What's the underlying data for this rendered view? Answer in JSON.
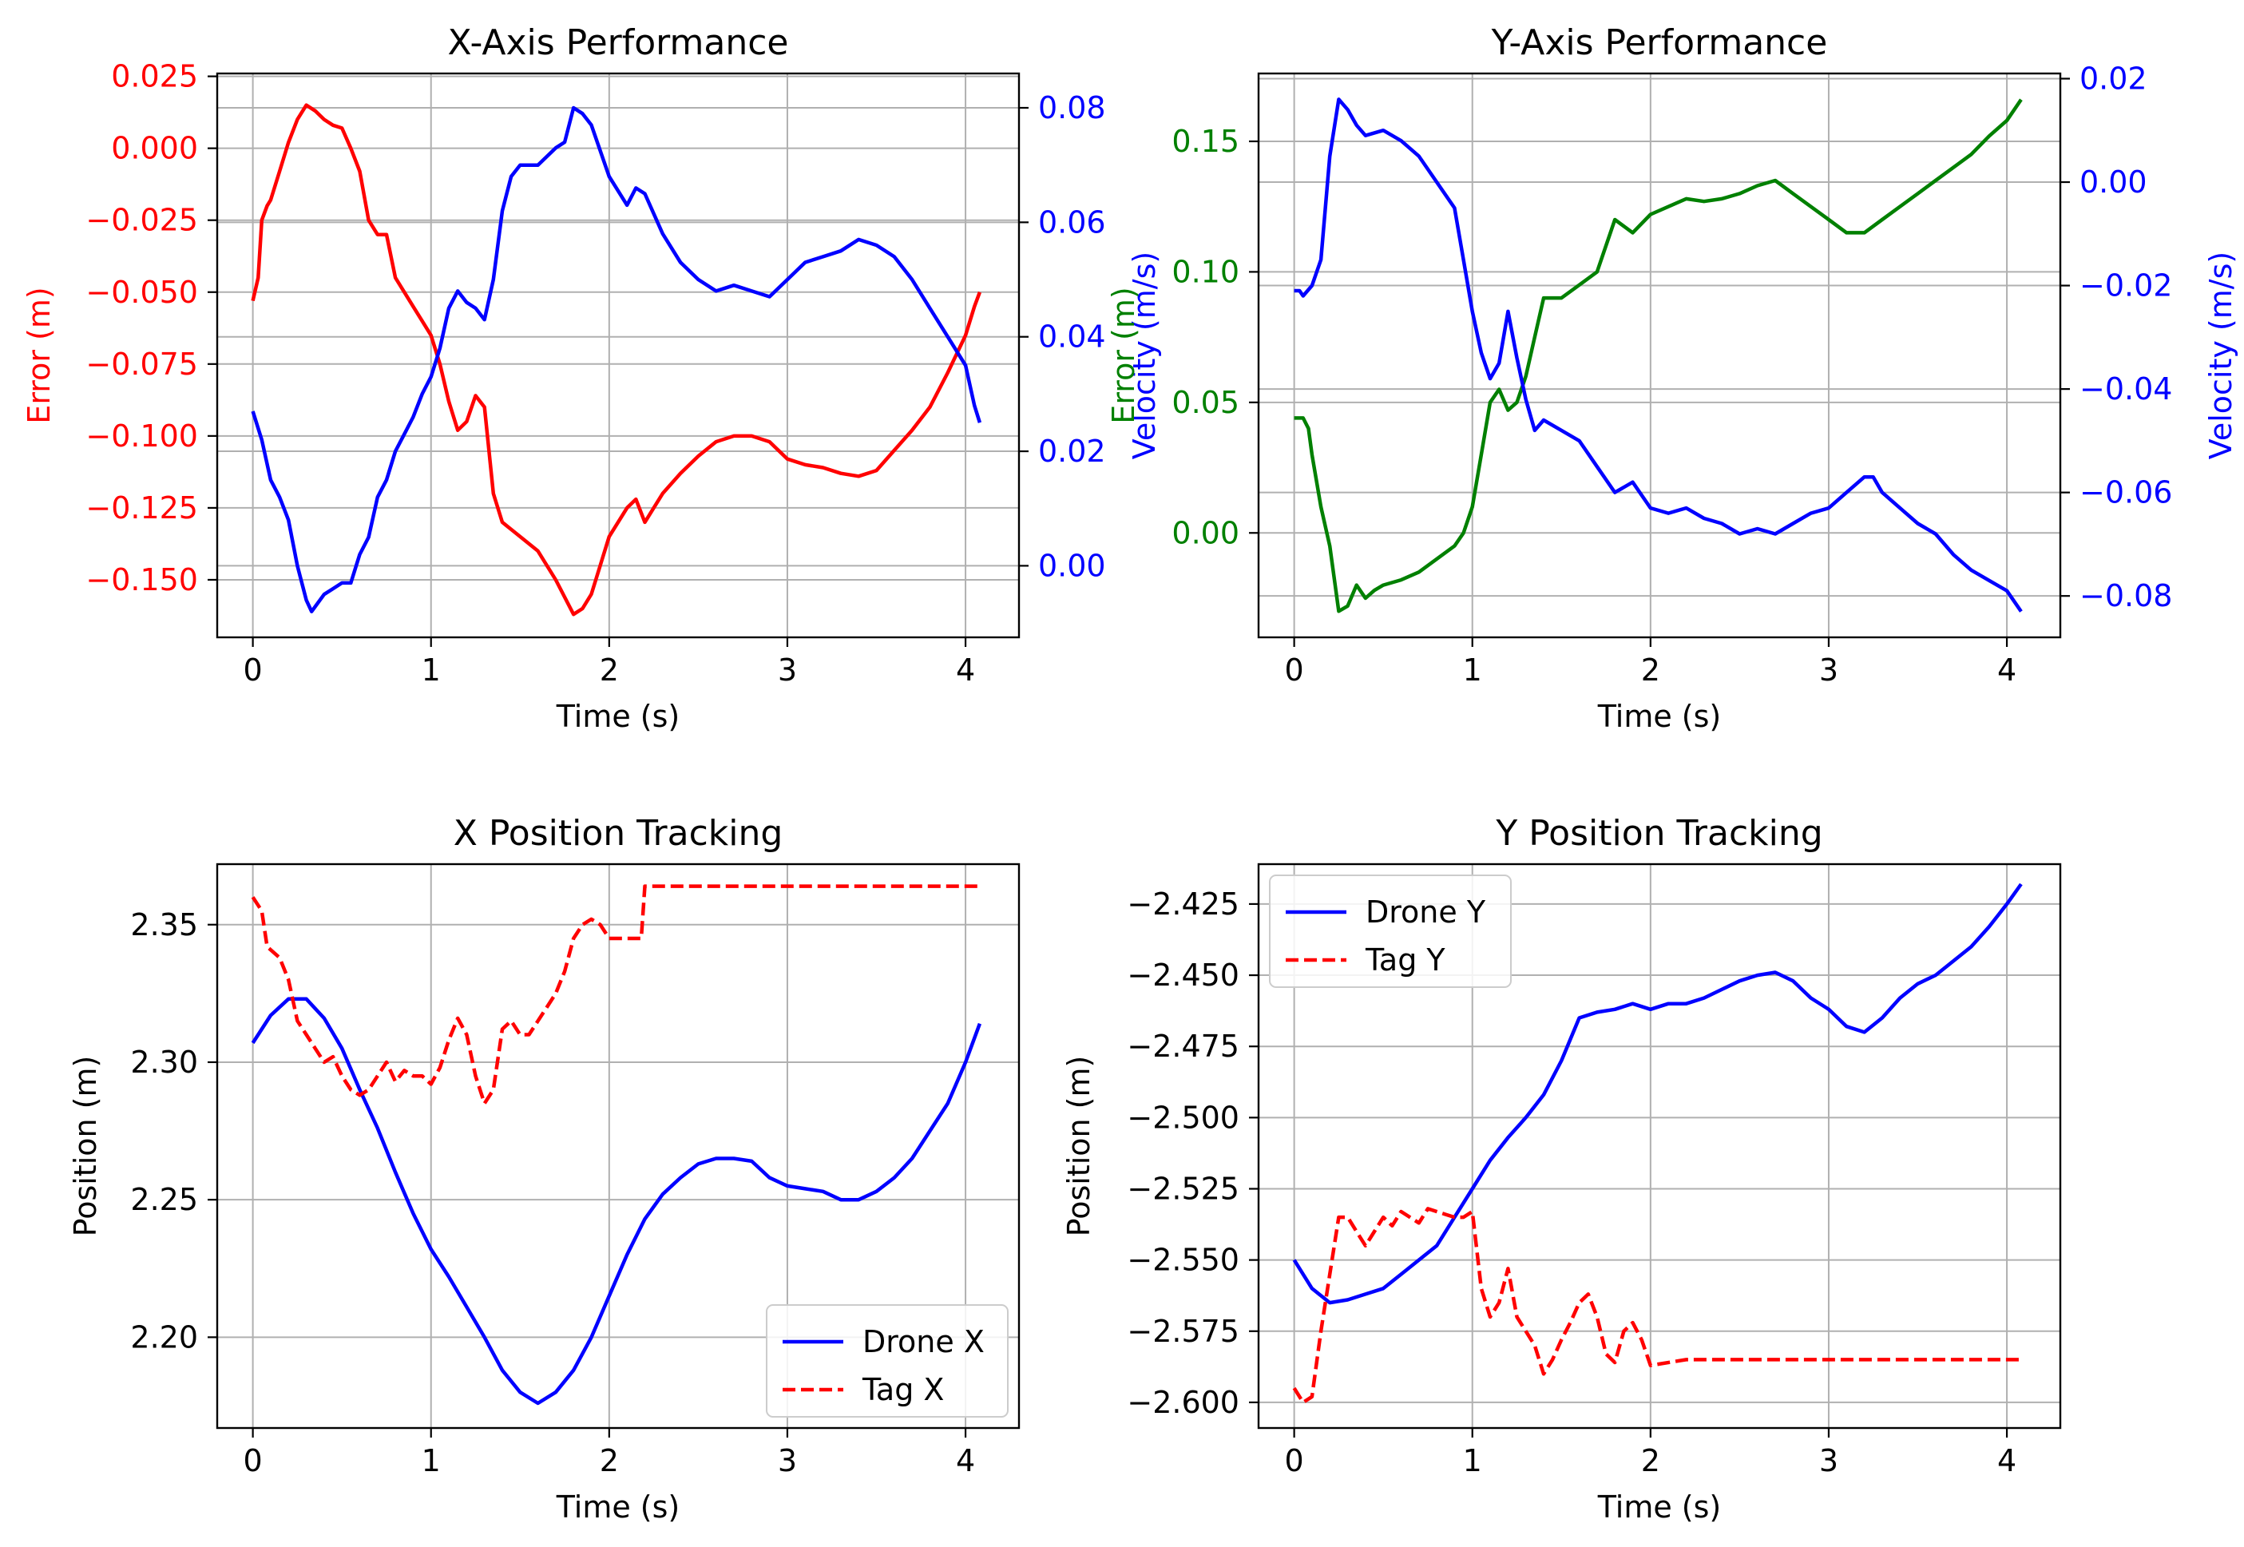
{
  "chart_data": [
    {
      "type": "line",
      "title": "X-Axis Performance",
      "xlabel": "Time (s)",
      "ylabel": "Error (m)",
      "ylabel_right": "Velocity (m/s)",
      "xlim": [
        -0.2,
        4.3
      ],
      "ylim": [
        -0.17,
        0.026
      ],
      "ylim_right": [
        -0.0125,
        0.086
      ],
      "xticks": [
        0,
        1,
        2,
        3,
        4
      ],
      "yticks": [
        -0.15,
        -0.125,
        -0.1,
        -0.075,
        -0.05,
        -0.025,
        0.0,
        0.025
      ],
      "yticks_right": [
        0.0,
        0.02,
        0.04,
        0.06,
        0.08
      ],
      "left_color": "#ff0000",
      "right_color": "#0000ff",
      "grid": true,
      "series": [
        {
          "axis": "left",
          "color": "#ff0000",
          "dash": false,
          "x": [
            0,
            0.03,
            0.05,
            0.08,
            0.1,
            0.15,
            0.2,
            0.25,
            0.3,
            0.35,
            0.4,
            0.45,
            0.5,
            0.55,
            0.6,
            0.65,
            0.7,
            0.75,
            0.8,
            0.85,
            0.9,
            0.95,
            1.0,
            1.05,
            1.1,
            1.15,
            1.2,
            1.25,
            1.3,
            1.35,
            1.4,
            1.5,
            1.6,
            1.7,
            1.8,
            1.85,
            1.9,
            2.0,
            2.1,
            2.15,
            2.2,
            2.3,
            2.4,
            2.5,
            2.6,
            2.7,
            2.8,
            2.9,
            3.0,
            3.1,
            3.2,
            3.3,
            3.4,
            3.5,
            3.6,
            3.7,
            3.8,
            3.9,
            4.0,
            4.05,
            4.08
          ],
          "y": [
            -0.053,
            -0.045,
            -0.025,
            -0.02,
            -0.018,
            -0.008,
            0.002,
            0.01,
            0.015,
            0.013,
            0.01,
            0.008,
            0.007,
            0.0,
            -0.008,
            -0.025,
            -0.03,
            -0.03,
            -0.045,
            -0.05,
            -0.055,
            -0.06,
            -0.065,
            -0.075,
            -0.088,
            -0.098,
            -0.095,
            -0.086,
            -0.09,
            -0.12,
            -0.13,
            -0.135,
            -0.14,
            -0.15,
            -0.162,
            -0.16,
            -0.155,
            -0.135,
            -0.125,
            -0.122,
            -0.13,
            -0.12,
            -0.113,
            -0.107,
            -0.102,
            -0.1,
            -0.1,
            -0.102,
            -0.108,
            -0.11,
            -0.111,
            -0.113,
            -0.114,
            -0.112,
            -0.105,
            -0.098,
            -0.09,
            -0.078,
            -0.065,
            -0.055,
            -0.05
          ]
        },
        {
          "axis": "right",
          "color": "#0000ff",
          "dash": false,
          "x": [
            0,
            0.05,
            0.1,
            0.15,
            0.2,
            0.25,
            0.3,
            0.33,
            0.4,
            0.45,
            0.5,
            0.55,
            0.6,
            0.65,
            0.7,
            0.75,
            0.8,
            0.85,
            0.9,
            0.95,
            1.0,
            1.05,
            1.1,
            1.15,
            1.2,
            1.25,
            1.3,
            1.35,
            1.4,
            1.45,
            1.5,
            1.6,
            1.7,
            1.75,
            1.8,
            1.85,
            1.9,
            2.0,
            2.1,
            2.15,
            2.2,
            2.3,
            2.4,
            2.5,
            2.6,
            2.7,
            2.8,
            2.9,
            3.0,
            3.1,
            3.2,
            3.3,
            3.4,
            3.5,
            3.6,
            3.7,
            3.8,
            3.9,
            4.0,
            4.05,
            4.08
          ],
          "y": [
            0.027,
            0.022,
            0.015,
            0.012,
            0.008,
            0.0,
            -0.006,
            -0.008,
            -0.005,
            -0.004,
            -0.003,
            -0.003,
            0.002,
            0.005,
            0.012,
            0.015,
            0.02,
            0.023,
            0.026,
            0.03,
            0.033,
            0.038,
            0.045,
            0.048,
            0.046,
            0.045,
            0.043,
            0.05,
            0.062,
            0.068,
            0.07,
            0.07,
            0.073,
            0.074,
            0.08,
            0.079,
            0.077,
            0.068,
            0.063,
            0.066,
            0.065,
            0.058,
            0.053,
            0.05,
            0.048,
            0.049,
            0.048,
            0.047,
            0.05,
            0.053,
            0.054,
            0.055,
            0.057,
            0.056,
            0.054,
            0.05,
            0.045,
            0.04,
            0.035,
            0.028,
            0.025
          ]
        }
      ]
    },
    {
      "type": "line",
      "title": "Y-Axis Performance",
      "xlabel": "Time (s)",
      "ylabel": "Error (m)",
      "ylabel_right": "Velocity (m/s)",
      "xlim": [
        -0.2,
        4.3
      ],
      "ylim": [
        -0.04,
        0.176
      ],
      "ylim_right": [
        -0.088,
        0.021
      ],
      "xticks": [
        0,
        1,
        2,
        3,
        4
      ],
      "yticks": [
        0.0,
        0.05,
        0.1,
        0.15
      ],
      "yticks_right": [
        -0.08,
        -0.06,
        -0.04,
        -0.02,
        0.0,
        0.02
      ],
      "left_color": "#008000",
      "right_color": "#0000ff",
      "grid": true,
      "series": [
        {
          "axis": "left",
          "color": "#008000",
          "dash": false,
          "x": [
            0,
            0.05,
            0.08,
            0.1,
            0.15,
            0.2,
            0.25,
            0.3,
            0.35,
            0.4,
            0.45,
            0.5,
            0.6,
            0.7,
            0.8,
            0.9,
            0.95,
            1.0,
            1.05,
            1.1,
            1.15,
            1.2,
            1.25,
            1.3,
            1.35,
            1.4,
            1.5,
            1.6,
            1.7,
            1.8,
            1.9,
            2.0,
            2.1,
            2.2,
            2.3,
            2.4,
            2.5,
            2.6,
            2.7,
            2.8,
            2.9,
            3.0,
            3.1,
            3.2,
            3.3,
            3.4,
            3.5,
            3.6,
            3.7,
            3.8,
            3.9,
            4.0,
            4.08
          ],
          "y": [
            0.044,
            0.044,
            0.04,
            0.03,
            0.01,
            -0.005,
            -0.03,
            -0.028,
            -0.02,
            -0.025,
            -0.022,
            -0.02,
            -0.018,
            -0.015,
            -0.01,
            -0.005,
            0.0,
            0.01,
            0.03,
            0.05,
            0.055,
            0.047,
            0.05,
            0.06,
            0.075,
            0.09,
            0.09,
            0.095,
            0.1,
            0.12,
            0.115,
            0.122,
            0.125,
            0.128,
            0.127,
            0.128,
            0.13,
            0.133,
            0.135,
            0.13,
            0.125,
            0.12,
            0.115,
            0.115,
            0.12,
            0.125,
            0.13,
            0.135,
            0.14,
            0.145,
            0.152,
            0.158,
            0.166
          ]
        },
        {
          "axis": "right",
          "color": "#0000ff",
          "dash": false,
          "x": [
            0,
            0.03,
            0.05,
            0.1,
            0.15,
            0.2,
            0.25,
            0.3,
            0.35,
            0.4,
            0.5,
            0.6,
            0.7,
            0.8,
            0.9,
            0.95,
            1.0,
            1.05,
            1.1,
            1.15,
            1.2,
            1.25,
            1.3,
            1.35,
            1.4,
            1.5,
            1.6,
            1.7,
            1.8,
            1.9,
            2.0,
            2.1,
            2.2,
            2.3,
            2.4,
            2.5,
            2.6,
            2.7,
            2.8,
            2.9,
            3.0,
            3.1,
            3.2,
            3.25,
            3.3,
            3.4,
            3.5,
            3.6,
            3.7,
            3.8,
            3.9,
            4.0,
            4.08
          ],
          "y": [
            -0.021,
            -0.021,
            -0.022,
            -0.02,
            -0.015,
            0.005,
            0.016,
            0.014,
            0.011,
            0.009,
            0.01,
            0.008,
            0.005,
            0.0,
            -0.005,
            -0.015,
            -0.025,
            -0.033,
            -0.038,
            -0.035,
            -0.025,
            -0.034,
            -0.042,
            -0.048,
            -0.046,
            -0.048,
            -0.05,
            -0.055,
            -0.06,
            -0.058,
            -0.063,
            -0.064,
            -0.063,
            -0.065,
            -0.066,
            -0.068,
            -0.067,
            -0.068,
            -0.066,
            -0.064,
            -0.063,
            -0.06,
            -0.057,
            -0.057,
            -0.06,
            -0.063,
            -0.066,
            -0.068,
            -0.072,
            -0.075,
            -0.077,
            -0.079,
            -0.083
          ]
        }
      ]
    },
    {
      "type": "line",
      "title": "X Position Tracking",
      "xlabel": "Time (s)",
      "ylabel": "Position (m)",
      "xlim": [
        -0.2,
        4.3
      ],
      "ylim": [
        2.167,
        2.372
      ],
      "xticks": [
        0,
        1,
        2,
        3,
        4
      ],
      "yticks": [
        2.2,
        2.25,
        2.3,
        2.35
      ],
      "grid": true,
      "legend": "bottom-right",
      "series": [
        {
          "name": "Drone X",
          "color": "#0000ff",
          "dash": false,
          "x": [
            0,
            0.1,
            0.2,
            0.3,
            0.4,
            0.5,
            0.6,
            0.7,
            0.8,
            0.9,
            1.0,
            1.1,
            1.2,
            1.3,
            1.4,
            1.5,
            1.6,
            1.7,
            1.8,
            1.9,
            2.0,
            2.1,
            2.2,
            2.3,
            2.4,
            2.5,
            2.6,
            2.7,
            2.8,
            2.9,
            3.0,
            3.1,
            3.2,
            3.3,
            3.4,
            3.5,
            3.6,
            3.7,
            3.8,
            3.9,
            4.0,
            4.08
          ],
          "y": [
            2.307,
            2.317,
            2.323,
            2.323,
            2.316,
            2.305,
            2.29,
            2.276,
            2.26,
            2.245,
            2.232,
            2.222,
            2.211,
            2.2,
            2.188,
            2.18,
            2.176,
            2.18,
            2.188,
            2.2,
            2.215,
            2.23,
            2.243,
            2.252,
            2.258,
            2.263,
            2.265,
            2.265,
            2.264,
            2.258,
            2.255,
            2.254,
            2.253,
            2.25,
            2.25,
            2.253,
            2.258,
            2.265,
            2.275,
            2.285,
            2.3,
            2.314
          ]
        },
        {
          "name": "Tag X",
          "color": "#ff0000",
          "dash": true,
          "x": [
            0,
            0.05,
            0.08,
            0.15,
            0.2,
            0.25,
            0.3,
            0.35,
            0.4,
            0.45,
            0.5,
            0.55,
            0.6,
            0.65,
            0.7,
            0.75,
            0.8,
            0.85,
            0.9,
            0.95,
            1.0,
            1.05,
            1.1,
            1.15,
            1.2,
            1.25,
            1.3,
            1.35,
            1.4,
            1.45,
            1.5,
            1.55,
            1.6,
            1.65,
            1.7,
            1.75,
            1.8,
            1.85,
            1.9,
            1.95,
            2.0,
            2.18,
            2.2,
            3.0,
            4.08
          ],
          "y": [
            2.36,
            2.355,
            2.342,
            2.338,
            2.33,
            2.315,
            2.31,
            2.305,
            2.3,
            2.302,
            2.295,
            2.29,
            2.288,
            2.29,
            2.295,
            2.3,
            2.293,
            2.297,
            2.295,
            2.295,
            2.292,
            2.298,
            2.308,
            2.316,
            2.31,
            2.295,
            2.285,
            2.29,
            2.312,
            2.315,
            2.31,
            2.31,
            2.315,
            2.32,
            2.325,
            2.333,
            2.345,
            2.35,
            2.352,
            2.35,
            2.345,
            2.345,
            2.364,
            2.364,
            2.364
          ]
        }
      ]
    },
    {
      "type": "line",
      "title": "Y Position Tracking",
      "xlabel": "Time (s)",
      "ylabel": "Position (m)",
      "xlim": [
        -0.2,
        4.3
      ],
      "ylim": [
        -2.609,
        -2.411
      ],
      "xticks": [
        0,
        1,
        2,
        3,
        4
      ],
      "yticks": [
        -2.6,
        -2.575,
        -2.55,
        -2.525,
        -2.5,
        -2.475,
        -2.45,
        -2.425
      ],
      "grid": true,
      "legend": "top-left",
      "series": [
        {
          "name": "Drone Y",
          "color": "#0000ff",
          "dash": false,
          "x": [
            0,
            0.1,
            0.2,
            0.3,
            0.4,
            0.5,
            0.6,
            0.7,
            0.8,
            0.9,
            1.0,
            1.1,
            1.2,
            1.3,
            1.4,
            1.5,
            1.6,
            1.7,
            1.8,
            1.9,
            2.0,
            2.1,
            2.2,
            2.3,
            2.4,
            2.5,
            2.6,
            2.7,
            2.8,
            2.9,
            3.0,
            3.1,
            3.2,
            3.3,
            3.4,
            3.5,
            3.6,
            3.7,
            3.8,
            3.9,
            4.0,
            4.08
          ],
          "y": [
            -2.55,
            -2.56,
            -2.565,
            -2.564,
            -2.562,
            -2.56,
            -2.555,
            -2.55,
            -2.545,
            -2.535,
            -2.525,
            -2.515,
            -2.507,
            -2.5,
            -2.492,
            -2.48,
            -2.465,
            -2.463,
            -2.462,
            -2.46,
            -2.462,
            -2.46,
            -2.46,
            -2.458,
            -2.455,
            -2.452,
            -2.45,
            -2.449,
            -2.452,
            -2.458,
            -2.462,
            -2.468,
            -2.47,
            -2.465,
            -2.458,
            -2.453,
            -2.45,
            -2.445,
            -2.44,
            -2.433,
            -2.425,
            -2.418
          ]
        },
        {
          "name": "Tag Y",
          "color": "#ff0000",
          "dash": true,
          "x": [
            0,
            0.05,
            0.1,
            0.15,
            0.2,
            0.25,
            0.3,
            0.35,
            0.4,
            0.45,
            0.5,
            0.55,
            0.6,
            0.65,
            0.7,
            0.75,
            0.8,
            0.85,
            0.9,
            0.95,
            1.0,
            1.05,
            1.1,
            1.15,
            1.2,
            1.25,
            1.3,
            1.35,
            1.4,
            1.45,
            1.5,
            1.55,
            1.6,
            1.65,
            1.7,
            1.75,
            1.8,
            1.85,
            1.9,
            1.95,
            2.0,
            2.2,
            4.08
          ],
          "y": [
            -2.595,
            -2.6,
            -2.598,
            -2.575,
            -2.555,
            -2.535,
            -2.535,
            -2.54,
            -2.545,
            -2.54,
            -2.535,
            -2.538,
            -2.533,
            -2.535,
            -2.537,
            -2.532,
            -2.533,
            -2.534,
            -2.535,
            -2.535,
            -2.533,
            -2.56,
            -2.57,
            -2.565,
            -2.553,
            -2.57,
            -2.575,
            -2.58,
            -2.59,
            -2.585,
            -2.578,
            -2.572,
            -2.565,
            -2.562,
            -2.57,
            -2.583,
            -2.586,
            -2.575,
            -2.572,
            -2.578,
            -2.587,
            -2.585,
            -2.585
          ]
        }
      ]
    }
  ]
}
